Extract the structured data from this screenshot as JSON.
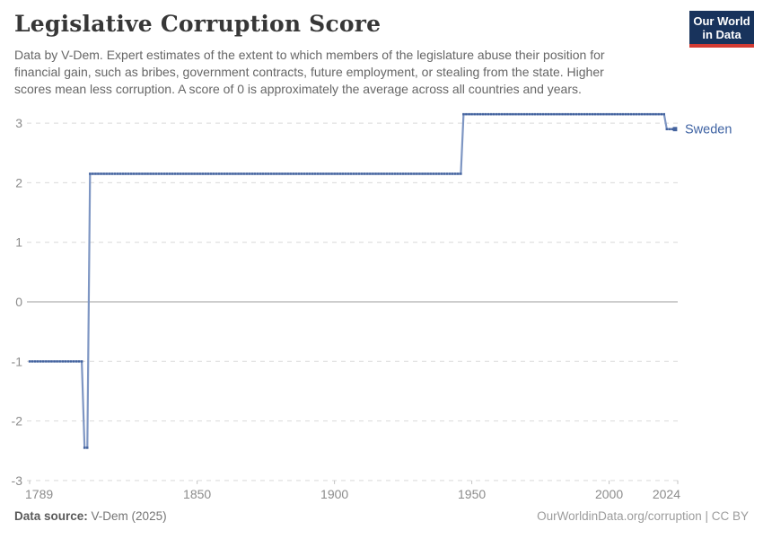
{
  "header": {
    "title": "Legislative Corruption Score",
    "subtitle_lines": [
      "Data by V-Dem. Expert estimates of the extent to which members of the legislature abuse their position for",
      "financial gain, such as bribes, government contracts, future employment, or stealing from the state. Higher",
      "scores mean less corruption. A score of 0 is approximately the average across all countries and years."
    ],
    "logo": {
      "line1": "Our World",
      "line2": "in Data",
      "bg_color": "#18335C",
      "accent_color": "#D23B33"
    }
  },
  "chart_data": {
    "type": "line",
    "title": "Legislative Corruption Score",
    "xlabel": "",
    "ylabel": "",
    "x": {
      "min": 1789,
      "max": 2024,
      "ticks": [
        1789,
        1850,
        1900,
        1950,
        2000,
        2024
      ]
    },
    "y": {
      "min": -3,
      "max": 3,
      "ticks": [
        3,
        2,
        1,
        0,
        -1,
        -2,
        -3
      ],
      "zero_line": true
    },
    "grid": {
      "horizontal": true,
      "style": "dashed"
    },
    "legend": {
      "position": "end-of-line",
      "entries": [
        "Sweden"
      ]
    },
    "series": [
      {
        "name": "Sweden",
        "color": "#44639E",
        "line_color": "#7E96C3",
        "step_segments": [
          {
            "from": 1789,
            "to": 1808,
            "value": -1.0
          },
          {
            "from": 1809,
            "to": 1810,
            "value": -2.45
          },
          {
            "from": 1811,
            "to": 1946,
            "value": 2.15
          },
          {
            "from": 1947,
            "to": 2020,
            "value": 3.15
          },
          {
            "from": 2021,
            "to": 2024,
            "value": 2.9
          }
        ]
      }
    ]
  },
  "footer": {
    "source_label": "Data source:",
    "source_value": "V-Dem (2025)",
    "credit": "OurWorldinData.org/corruption | CC BY"
  }
}
